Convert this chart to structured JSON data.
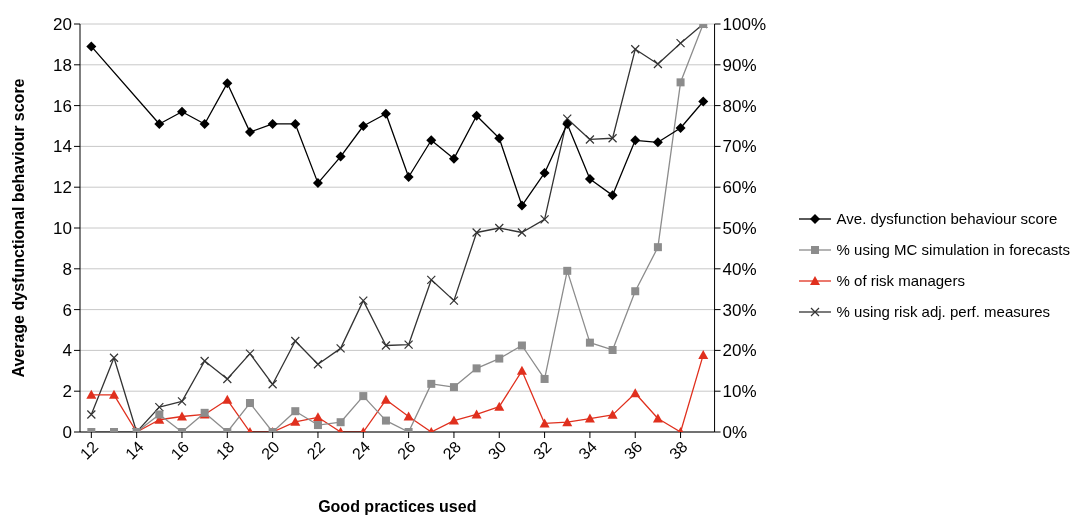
{
  "chart_data": {
    "type": "line",
    "xlabel": "Good practices used",
    "ylabel": "Average dysfunctional behaviour score",
    "x": [
      12,
      13,
      14,
      15,
      16,
      17,
      18,
      19,
      20,
      21,
      22,
      23,
      24,
      25,
      26,
      27,
      28,
      29,
      30,
      31,
      32,
      33,
      34,
      35,
      36,
      37,
      38,
      39
    ],
    "xlim": [
      11.5,
      39.5
    ],
    "xticks": [
      12,
      14,
      16,
      18,
      20,
      22,
      24,
      26,
      28,
      30,
      32,
      34,
      36,
      38
    ],
    "ylim": [
      0,
      20
    ],
    "yticks": [
      0,
      2,
      4,
      6,
      8,
      10,
      12,
      14,
      16,
      18,
      20
    ],
    "y2lim": [
      0,
      100
    ],
    "y2ticks": [
      {
        "value": 0,
        "label": "0%"
      },
      {
        "value": 10,
        "label": "10%"
      },
      {
        "value": 20,
        "label": "20%"
      },
      {
        "value": 30,
        "label": "30%"
      },
      {
        "value": 40,
        "label": "40%"
      },
      {
        "value": 50,
        "label": "50%"
      },
      {
        "value": 60,
        "label": "60%"
      },
      {
        "value": 70,
        "label": "70%"
      },
      {
        "value": 80,
        "label": "80%"
      },
      {
        "value": 90,
        "label": "90%"
      },
      {
        "value": 100,
        "label": "100%"
      }
    ],
    "grid": "y",
    "legend": "right",
    "series": [
      {
        "name": "Ave. dysfunction behaviour score",
        "color": "#000000",
        "marker": "diamond",
        "x": [
          12,
          15,
          16,
          17,
          18,
          19,
          20,
          21,
          22,
          23,
          24,
          25,
          26,
          27,
          28,
          29,
          30,
          31,
          32,
          33,
          34,
          35,
          36,
          37,
          38,
          39
        ],
        "values": [
          18.9,
          15.1,
          15.7,
          15.1,
          17.1,
          14.7,
          15.1,
          15.1,
          12.2,
          13.5,
          15.0,
          15.6,
          12.5,
          14.3,
          13.4,
          15.5,
          14.4,
          11.1,
          12.7,
          15.1,
          12.4,
          11.6,
          14.3,
          14.2,
          14.9,
          16.2
        ]
      },
      {
        "name": "% using MC simulation in forecasts",
        "color": "#8c8c8c",
        "marker": "square",
        "axis": "y2",
        "values": [
          0,
          0,
          0,
          4.3,
          0,
          4.7,
          0,
          7.1,
          0,
          5.1,
          1.7,
          2.4,
          8.8,
          2.8,
          0,
          11.8,
          11.0,
          15.6,
          18.0,
          21.2,
          13.0,
          39.5,
          21.9,
          20.1,
          34.5,
          45.3,
          85.7,
          100
        ]
      },
      {
        "name": "% of risk managers",
        "color": "#e0301e",
        "marker": "triangle",
        "axis": "y2",
        "values": [
          9.1,
          9.1,
          0,
          3.0,
          3.8,
          4.3,
          7.9,
          0,
          0,
          2.5,
          3.6,
          0,
          0,
          7.9,
          3.8,
          0,
          2.8,
          4.3,
          6.2,
          15.0,
          2.1,
          2.4,
          3.3,
          4.2,
          9.5,
          3.3,
          0,
          18.9
        ]
      },
      {
        "name": "% using risk adj. perf. measures",
        "color": "#333333",
        "marker": "cross",
        "axis": "y2",
        "values": [
          4.3,
          18.2,
          0,
          6.1,
          7.5,
          17.4,
          13.0,
          19.2,
          11.7,
          22.3,
          16.6,
          20.5,
          32.2,
          21.2,
          21.4,
          37.3,
          32.2,
          48.9,
          50.0,
          48.9,
          52.1,
          76.8,
          71.7,
          72.0,
          93.8,
          90.2,
          95.3,
          100
        ]
      }
    ]
  }
}
